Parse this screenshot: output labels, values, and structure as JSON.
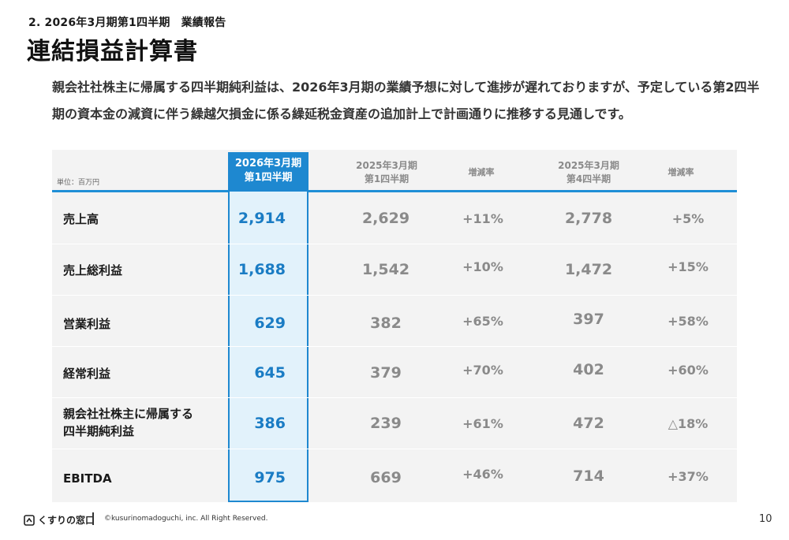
{
  "section": {
    "number": "2. 2026年3月期第1四半期",
    "name": "業績報告"
  },
  "title": "連結損益計算書",
  "lead": "親会社社株主に帰属する四半期純利益は、2026年3月期の業績予想に対して進捗が遅れておりますが、予定している第2四半期の資本金の減資に伴う繰越欠損金に係る繰延税金資産の追加計上で計画通りに推移する見通しです。",
  "table": {
    "unit": "単位：百万円",
    "headers": {
      "current_l1": "2026年3月期",
      "current_l2": "第1四半期",
      "prev_q1_l1": "2025年3月期",
      "prev_q1_l2": "第1四半期",
      "rate1": "増減率",
      "prev_q4_l1": "2025年3月期",
      "prev_q4_l2": "第4四半期",
      "rate2": "増減率"
    },
    "rows": [
      {
        "label": "売上高",
        "label2": "",
        "current": "2,914",
        "prev_q1": "2,629",
        "rate1": "+11%",
        "prev_q4": "2,778",
        "rate2": "+5%"
      },
      {
        "label": "売上総利益",
        "label2": "",
        "current": "1,688",
        "prev_q1": "1,542",
        "rate1": "+10%",
        "prev_q4": "1,472",
        "rate2": "+15%"
      },
      {
        "label": "営業利益",
        "label2": "",
        "current": "629",
        "prev_q1": "382",
        "rate1": "+65%",
        "prev_q4": "397",
        "rate2": "+58%"
      },
      {
        "label": "経常利益",
        "label2": "",
        "current": "645",
        "prev_q1": "379",
        "rate1": "+70%",
        "prev_q4": "402",
        "rate2": "+60%"
      },
      {
        "label": "親会社社株主に帰属する",
        "label2": "四半期純利益",
        "current": "386",
        "prev_q1": "239",
        "rate1": "+61%",
        "prev_q4": "472",
        "rate2": "△18%"
      },
      {
        "label": "EBITDA",
        "label2": "",
        "current": "975",
        "prev_q1": "669",
        "rate1": "+46%",
        "prev_q4": "714",
        "rate2": "+37%"
      }
    ]
  },
  "footer": {
    "logo": "くすりの窓口",
    "copyright": "©kusurinomadoguchi, inc. All Right Reserved.",
    "page": "10"
  },
  "colors": {
    "accent": "#1e88d0",
    "highlight_bg": "#e2f2fb",
    "table_bg": "#f3f3f3"
  }
}
